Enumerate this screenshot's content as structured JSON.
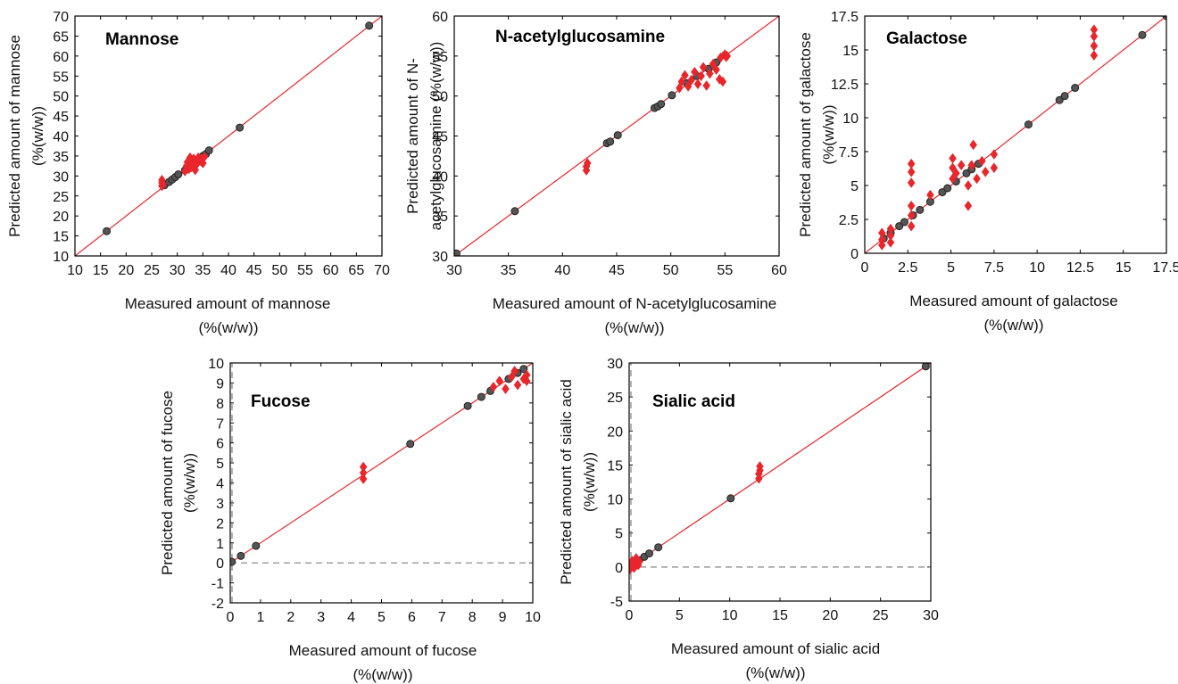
{
  "colors": {
    "measured_point": "#555555",
    "predicted_point": "#e8262b",
    "identity_line": "#e8262b",
    "zero_line": "#808080"
  },
  "chart_data": [
    {
      "type": "scatter",
      "title": "Mannose",
      "xlabel": "Measured amount of mannose",
      "xlabel2": "(%(w/w))",
      "ylabel": "Predicted amount of mannose",
      "ylabel2": "(%(w/w))",
      "xlim": [
        10,
        70
      ],
      "ylim": [
        10,
        70
      ],
      "xticks": [
        10,
        15,
        20,
        25,
        30,
        35,
        40,
        45,
        50,
        55,
        60,
        65,
        70
      ],
      "yticks": [
        10,
        15,
        20,
        25,
        30,
        35,
        40,
        45,
        50,
        55,
        60,
        65,
        70
      ],
      "identity_line": true,
      "series": [
        {
          "marker": "circle",
          "color": "#555555",
          "points": [
            [
              16.2,
              16.2
            ],
            [
              27.5,
              27.7
            ],
            [
              28.4,
              28.5
            ],
            [
              29,
              29.1
            ],
            [
              29.6,
              29.7
            ],
            [
              30.2,
              30.4
            ],
            [
              31.5,
              31.4
            ],
            [
              32.5,
              32.6
            ],
            [
              33.2,
              33.1
            ],
            [
              34.2,
              34.3
            ],
            [
              35,
              35
            ],
            [
              35.6,
              35.5
            ],
            [
              36.2,
              36.4
            ],
            [
              42.2,
              42.1
            ],
            [
              67.5,
              67.6
            ]
          ]
        },
        {
          "marker": "diamond",
          "color": "#e8262b",
          "points": [
            [
              27,
              27.5
            ],
            [
              27,
              28.3
            ],
            [
              27,
              29
            ],
            [
              27.2,
              28
            ],
            [
              31.5,
              31.2
            ],
            [
              31.8,
              32.5
            ],
            [
              32,
              33.5
            ],
            [
              32.3,
              31.8
            ],
            [
              32.7,
              32.2
            ],
            [
              33,
              33.3
            ],
            [
              33.2,
              34.3
            ],
            [
              33.5,
              31.5
            ],
            [
              33.8,
              33
            ],
            [
              34.1,
              34.6
            ],
            [
              34.5,
              33.8
            ],
            [
              34.8,
              34.2
            ],
            [
              35,
              33.2
            ],
            [
              35.3,
              34.8
            ],
            [
              32.5,
              34.6
            ]
          ]
        }
      ]
    },
    {
      "type": "scatter",
      "title": "N-acetylglucosamine",
      "xlabel": "Measured amount of N-acetylglucosamine",
      "xlabel2": "(%(w/w))",
      "ylabel": "Predicted amount of N-",
      "ylabel2": "acetylglucosamine (%(w/w))",
      "xlim": [
        30,
        60
      ],
      "ylim": [
        30,
        60
      ],
      "xticks": [
        30,
        35,
        40,
        45,
        50,
        55,
        60
      ],
      "yticks": [
        30,
        35,
        40,
        45,
        50,
        55,
        60
      ],
      "identity_line": true,
      "series": [
        {
          "marker": "circle",
          "color": "#555555",
          "points": [
            [
              30.2,
              30.3
            ],
            [
              35.6,
              35.6
            ],
            [
              44.1,
              44.1
            ],
            [
              44.4,
              44.3
            ],
            [
              45.1,
              45.1
            ],
            [
              48.5,
              48.5
            ],
            [
              48.8,
              48.7
            ],
            [
              49.1,
              49
            ],
            [
              50.1,
              50.1
            ],
            [
              51.5,
              51.6
            ],
            [
              52.4,
              52.5
            ],
            [
              53.5,
              53.4
            ],
            [
              54.2,
              54.2
            ],
            [
              55,
              55.1
            ]
          ]
        },
        {
          "marker": "diamond",
          "color": "#e8262b",
          "points": [
            [
              42.2,
              40.7
            ],
            [
              42.2,
              41.2
            ],
            [
              42.3,
              41.6
            ],
            [
              50.8,
              51
            ],
            [
              51,
              51.8
            ],
            [
              51.3,
              52.6
            ],
            [
              51.6,
              51.2
            ],
            [
              51.9,
              52
            ],
            [
              52.2,
              53
            ],
            [
              52.5,
              51.5
            ],
            [
              52.8,
              52.5
            ],
            [
              53,
              53.6
            ],
            [
              53.3,
              51.3
            ],
            [
              53.6,
              52.8
            ],
            [
              53.9,
              54
            ],
            [
              54.2,
              53.3
            ],
            [
              54.5,
              52.1
            ],
            [
              54.6,
              54.8
            ],
            [
              55,
              55.2
            ],
            [
              55.1,
              54.9
            ],
            [
              54.8,
              51.8
            ],
            [
              55.2,
              55
            ]
          ]
        }
      ]
    },
    {
      "type": "scatter",
      "title": "Galactose",
      "xlabel": "Measured amount of galactose",
      "xlabel2": "(%(w/w))",
      "ylabel": "Predicted amount of galactose",
      "ylabel2": "(%(w/w))",
      "xlim": [
        0,
        17.5
      ],
      "ylim": [
        0,
        17.5
      ],
      "xticks": [
        0,
        2.5,
        5,
        7.5,
        10,
        12.5,
        15,
        17.5
      ],
      "yticks": [
        0,
        2.5,
        5,
        7.5,
        10,
        12.5,
        15,
        17.5
      ],
      "identity_line": true,
      "series": [
        {
          "marker": "circle",
          "color": "#555555",
          "points": [
            [
              1.1,
              1.1
            ],
            [
              1.5,
              1.5
            ],
            [
              2,
              2
            ],
            [
              2.3,
              2.3
            ],
            [
              2.8,
              2.8
            ],
            [
              3.2,
              3.2
            ],
            [
              3.8,
              3.8
            ],
            [
              4.5,
              4.5
            ],
            [
              4.8,
              4.8
            ],
            [
              5.3,
              5.3
            ],
            [
              5.9,
              5.9
            ],
            [
              6.2,
              6.2
            ],
            [
              6.6,
              6.6
            ],
            [
              9.5,
              9.5
            ],
            [
              11.3,
              11.3
            ],
            [
              11.6,
              11.6
            ],
            [
              12.2,
              12.2
            ],
            [
              16.1,
              16.1
            ],
            [
              17.5,
              17.5
            ]
          ]
        },
        {
          "marker": "diamond",
          "color": "#e8262b",
          "points": [
            [
              1,
              0.6
            ],
            [
              1,
              1
            ],
            [
              1,
              1.5
            ],
            [
              1.5,
              0.8
            ],
            [
              1.5,
              1.3
            ],
            [
              1.5,
              1.8
            ],
            [
              2.7,
              2
            ],
            [
              2.7,
              2.8
            ],
            [
              2.7,
              3.5
            ],
            [
              2.7,
              5.2
            ],
            [
              2.7,
              6
            ],
            [
              2.7,
              6.6
            ],
            [
              3.8,
              4.3
            ],
            [
              5.1,
              5.5
            ],
            [
              5.1,
              6.3
            ],
            [
              5.1,
              7
            ],
            [
              5.3,
              5.9
            ],
            [
              5.6,
              6.5
            ],
            [
              6,
              5
            ],
            [
              6,
              3.5
            ],
            [
              6.2,
              6.5
            ],
            [
              6.3,
              8
            ],
            [
              6.5,
              5.5
            ],
            [
              6.8,
              6.8
            ],
            [
              7,
              6
            ],
            [
              7.5,
              6.3
            ],
            [
              7.5,
              7.3
            ],
            [
              13.3,
              14.6
            ],
            [
              13.3,
              15.3
            ],
            [
              13.3,
              16
            ],
            [
              13.3,
              16.5
            ]
          ]
        }
      ]
    },
    {
      "type": "scatter",
      "title": "Fucose",
      "xlabel": "Measured amount of fucose",
      "xlabel2": "(%(w/w))",
      "ylabel": "Predicted amount of fucose",
      "ylabel2": "(%(w/w))",
      "xlim": [
        0,
        10
      ],
      "ylim": [
        -2,
        10
      ],
      "xticks": [
        0,
        1,
        2,
        3,
        4,
        5,
        6,
        7,
        8,
        9,
        10
      ],
      "yticks": [
        -2,
        -1,
        0,
        1,
        2,
        3,
        4,
        5,
        6,
        7,
        8,
        9,
        10
      ],
      "identity_line": true,
      "zero_lines": true,
      "series": [
        {
          "marker": "circle",
          "color": "#555555",
          "points": [
            [
              0.05,
              0.05
            ],
            [
              0.35,
              0.35
            ],
            [
              0.85,
              0.85
            ],
            [
              5.95,
              5.95
            ],
            [
              7.85,
              7.85
            ],
            [
              8.3,
              8.3
            ],
            [
              8.6,
              8.6
            ],
            [
              9.2,
              9.2
            ],
            [
              9.5,
              9.5
            ],
            [
              9.7,
              9.7
            ]
          ]
        },
        {
          "marker": "diamond",
          "color": "#e8262b",
          "points": [
            [
              4.4,
              4.2
            ],
            [
              4.4,
              4.5
            ],
            [
              4.4,
              4.8
            ],
            [
              8.7,
              8.8
            ],
            [
              8.9,
              9.1
            ],
            [
              9.1,
              8.7
            ],
            [
              9.3,
              9.3
            ],
            [
              9.4,
              9.6
            ],
            [
              9.5,
              8.9
            ],
            [
              9.7,
              9.2
            ],
            [
              9.8,
              9.4
            ],
            [
              9.8,
              9.1
            ]
          ]
        }
      ]
    },
    {
      "type": "scatter",
      "title": "Sialic acid",
      "xlabel": "Measured amount of sialic acid",
      "xlabel2": "(%(w/w))",
      "ylabel": "Predicted amount of sialic acid",
      "ylabel2": "(%(w/w))",
      "xlim": [
        0,
        30
      ],
      "ylim": [
        -5,
        30
      ],
      "xticks": [
        0,
        5,
        10,
        15,
        20,
        25,
        30
      ],
      "yticks": [
        -5,
        0,
        5,
        10,
        15,
        20,
        25,
        30
      ],
      "identity_line": true,
      "zero_lines": true,
      "series": [
        {
          "marker": "circle",
          "color": "#555555",
          "points": [
            [
              0.2,
              0.2
            ],
            [
              0.5,
              0.5
            ],
            [
              1,
              1
            ],
            [
              1.5,
              1.5
            ],
            [
              2,
              2
            ],
            [
              2.9,
              2.9
            ],
            [
              10.1,
              10.1
            ],
            [
              29.5,
              29.5
            ]
          ]
        },
        {
          "marker": "diamond",
          "color": "#e8262b",
          "points": [
            [
              0.1,
              -0.3
            ],
            [
              0.2,
              0.4
            ],
            [
              0.3,
              0.9
            ],
            [
              0.5,
              -0.1
            ],
            [
              0.6,
              0.6
            ],
            [
              0.7,
              1.3
            ],
            [
              0.9,
              0.3
            ],
            [
              1,
              0.8
            ],
            [
              12.9,
              13
            ],
            [
              12.9,
              13.7
            ],
            [
              13,
              14.2
            ],
            [
              13,
              14.8
            ]
          ]
        }
      ]
    }
  ]
}
